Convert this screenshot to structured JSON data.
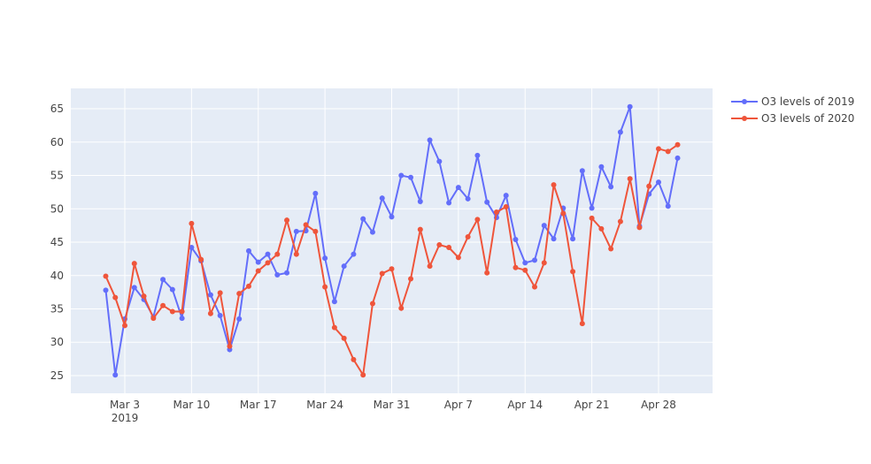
{
  "chart_data": {
    "type": "line",
    "x": [
      "2019-03-01",
      "2019-03-02",
      "2019-03-03",
      "2019-03-04",
      "2019-03-05",
      "2019-03-06",
      "2019-03-07",
      "2019-03-08",
      "2019-03-09",
      "2019-03-10",
      "2019-03-11",
      "2019-03-12",
      "2019-03-13",
      "2019-03-14",
      "2019-03-15",
      "2019-03-16",
      "2019-03-17",
      "2019-03-18",
      "2019-03-19",
      "2019-03-20",
      "2019-03-21",
      "2019-03-22",
      "2019-03-23",
      "2019-03-24",
      "2019-03-25",
      "2019-03-26",
      "2019-03-27",
      "2019-03-28",
      "2019-03-29",
      "2019-03-30",
      "2019-03-31",
      "2019-04-01",
      "2019-04-02",
      "2019-04-03",
      "2019-04-04",
      "2019-04-05",
      "2019-04-06",
      "2019-04-07",
      "2019-04-08",
      "2019-04-09",
      "2019-04-10",
      "2019-04-11",
      "2019-04-12",
      "2019-04-13",
      "2019-04-14",
      "2019-04-15",
      "2019-04-16",
      "2019-04-17",
      "2019-04-18",
      "2019-04-19",
      "2019-04-20",
      "2019-04-21",
      "2019-04-22",
      "2019-04-23",
      "2019-04-24",
      "2019-04-25",
      "2019-04-26",
      "2019-04-27",
      "2019-04-28",
      "2019-04-29",
      "2019-04-30"
    ],
    "series": [
      {
        "name": "O3 levels of 2019",
        "color": "#636efa",
        "values": [
          37.8,
          25.1,
          33.5,
          38.2,
          36.4,
          33.8,
          39.4,
          37.9,
          33.6,
          44.2,
          42.2,
          37.1,
          34.0,
          28.9,
          33.5,
          43.7,
          42.0,
          43.2,
          40.1,
          40.4,
          46.6,
          46.7,
          52.3,
          42.6,
          36.1,
          41.4,
          43.2,
          48.5,
          46.5,
          51.6,
          48.8,
          55.0,
          54.7,
          51.1,
          60.3,
          57.1,
          50.9,
          53.2,
          51.5,
          58.0,
          51.0,
          48.7,
          52.0,
          45.4,
          41.9,
          42.3,
          47.5,
          45.5,
          50.1,
          45.5,
          55.7,
          50.1,
          56.3,
          53.3,
          61.5,
          65.3,
          47.4,
          52.2,
          54.0,
          50.4,
          57.6
        ]
      },
      {
        "name": "O3 levels of 2020",
        "color": "#ef553b",
        "values": [
          39.9,
          36.7,
          32.5,
          41.8,
          36.9,
          33.6,
          35.5,
          34.6,
          34.6,
          47.8,
          42.4,
          34.3,
          37.4,
          29.4,
          37.3,
          38.4,
          40.7,
          41.9,
          43.2,
          48.3,
          43.2,
          47.6,
          46.6,
          38.3,
          32.2,
          30.6,
          27.4,
          25.1,
          35.8,
          40.3,
          41.0,
          35.1,
          39.5,
          46.9,
          41.4,
          44.6,
          44.2,
          42.7,
          45.8,
          48.4,
          40.4,
          49.5,
          50.3,
          41.2,
          40.8,
          38.3,
          41.9,
          53.6,
          49.3,
          40.6,
          32.8,
          48.6,
          47.0,
          44.0,
          48.1,
          54.5,
          47.2,
          53.4,
          59.0,
          58.6,
          59.6
        ]
      }
    ],
    "xlim": [
      "2019-02-25T08:00:00Z",
      "2019-05-03T16:00:00Z"
    ],
    "xticks": [
      {
        "value": "2019-03-03",
        "label": "Mar 3\n2019"
      },
      {
        "value": "2019-03-10",
        "label": "Mar 10"
      },
      {
        "value": "2019-03-17",
        "label": "Mar 17"
      },
      {
        "value": "2019-03-24",
        "label": "Mar 24"
      },
      {
        "value": "2019-03-31",
        "label": "Mar 31"
      },
      {
        "value": "2019-04-07",
        "label": "Apr 7"
      },
      {
        "value": "2019-04-14",
        "label": "Apr 14"
      },
      {
        "value": "2019-04-21",
        "label": "Apr 21"
      },
      {
        "value": "2019-04-28",
        "label": "Apr 28"
      }
    ],
    "ylim": [
      22.35,
      68.05
    ],
    "yticks": [
      25,
      30,
      35,
      40,
      45,
      50,
      55,
      60,
      65
    ],
    "grid": true,
    "legend": "right"
  }
}
